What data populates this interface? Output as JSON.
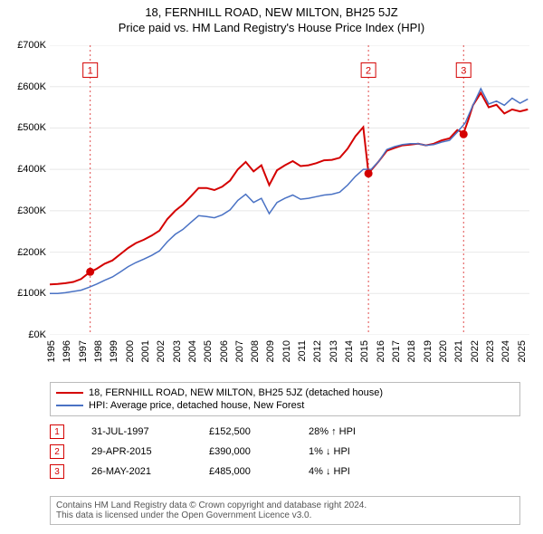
{
  "title": "18, FERNHILL ROAD, NEW MILTON, BH25 5JZ",
  "subtitle": "Price paid vs. HM Land Registry's House Price Index (HPI)",
  "chart": {
    "background_color": "#ffffff",
    "grid_color": "#e8e8e8",
    "axis_color": "#e0e0e0",
    "label_fontsize": 11,
    "x_min": 1995,
    "x_max": 2025.6,
    "xtick_step": 1,
    "ylim": [
      0,
      700000
    ],
    "ytick_step": 100000,
    "y_prefix": "£",
    "y_suffix": "K",
    "series": [
      {
        "name": "18, FERNHILL ROAD, NEW MILTON, BH25 5JZ (detached house)",
        "color": "#d40000",
        "width": 2,
        "points": [
          [
            1995.0,
            122000
          ],
          [
            1995.5,
            123000
          ],
          [
            1996.0,
            125000
          ],
          [
            1996.5,
            128000
          ],
          [
            1997.0,
            135000
          ],
          [
            1997.5,
            150000
          ],
          [
            1998.0,
            160000
          ],
          [
            1998.5,
            172000
          ],
          [
            1999.0,
            180000
          ],
          [
            1999.5,
            195000
          ],
          [
            2000.0,
            210000
          ],
          [
            2000.5,
            222000
          ],
          [
            2001.0,
            230000
          ],
          [
            2001.5,
            240000
          ],
          [
            2002.0,
            252000
          ],
          [
            2002.5,
            280000
          ],
          [
            2003.0,
            300000
          ],
          [
            2003.5,
            315000
          ],
          [
            2004.0,
            335000
          ],
          [
            2004.5,
            355000
          ],
          [
            2005.0,
            355000
          ],
          [
            2005.5,
            350000
          ],
          [
            2006.0,
            358000
          ],
          [
            2006.5,
            373000
          ],
          [
            2007.0,
            400000
          ],
          [
            2007.5,
            418000
          ],
          [
            2008.0,
            395000
          ],
          [
            2008.5,
            410000
          ],
          [
            2009.0,
            362000
          ],
          [
            2009.5,
            398000
          ],
          [
            2010.0,
            410000
          ],
          [
            2010.5,
            420000
          ],
          [
            2011.0,
            408000
          ],
          [
            2011.5,
            410000
          ],
          [
            2012.0,
            415000
          ],
          [
            2012.5,
            422000
          ],
          [
            2013.0,
            423000
          ],
          [
            2013.5,
            428000
          ],
          [
            2014.0,
            450000
          ],
          [
            2014.5,
            480000
          ],
          [
            2015.0,
            502000
          ],
          [
            2015.33,
            392000
          ],
          [
            2015.5,
            398000
          ],
          [
            2016.0,
            420000
          ],
          [
            2016.5,
            445000
          ],
          [
            2017.0,
            452000
          ],
          [
            2017.5,
            458000
          ],
          [
            2018.0,
            460000
          ],
          [
            2018.5,
            462000
          ],
          [
            2019.0,
            458000
          ],
          [
            2019.5,
            462000
          ],
          [
            2020.0,
            470000
          ],
          [
            2020.5,
            475000
          ],
          [
            2021.0,
            495000
          ],
          [
            2021.4,
            488000
          ],
          [
            2021.7,
            520000
          ],
          [
            2022.0,
            555000
          ],
          [
            2022.5,
            585000
          ],
          [
            2023.0,
            550000
          ],
          [
            2023.5,
            556000
          ],
          [
            2024.0,
            535000
          ],
          [
            2024.5,
            545000
          ],
          [
            2025.0,
            540000
          ],
          [
            2025.5,
            545000
          ]
        ]
      },
      {
        "name": "HPI: Average price, detached house, New Forest",
        "color": "#4a72c4",
        "width": 1.5,
        "points": [
          [
            1995.0,
            100000
          ],
          [
            1995.5,
            100000
          ],
          [
            1996.0,
            102000
          ],
          [
            1996.5,
            105000
          ],
          [
            1997.0,
            108000
          ],
          [
            1997.5,
            115000
          ],
          [
            1998.0,
            123000
          ],
          [
            1998.5,
            132000
          ],
          [
            1999.0,
            140000
          ],
          [
            1999.5,
            152000
          ],
          [
            2000.0,
            165000
          ],
          [
            2000.5,
            175000
          ],
          [
            2001.0,
            183000
          ],
          [
            2001.5,
            192000
          ],
          [
            2002.0,
            203000
          ],
          [
            2002.5,
            225000
          ],
          [
            2003.0,
            243000
          ],
          [
            2003.5,
            255000
          ],
          [
            2004.0,
            272000
          ],
          [
            2004.5,
            288000
          ],
          [
            2005.0,
            286000
          ],
          [
            2005.5,
            283000
          ],
          [
            2006.0,
            290000
          ],
          [
            2006.5,
            302000
          ],
          [
            2007.0,
            325000
          ],
          [
            2007.5,
            340000
          ],
          [
            2008.0,
            320000
          ],
          [
            2008.5,
            330000
          ],
          [
            2009.0,
            293000
          ],
          [
            2009.5,
            320000
          ],
          [
            2010.0,
            330000
          ],
          [
            2010.5,
            338000
          ],
          [
            2011.0,
            328000
          ],
          [
            2011.5,
            330000
          ],
          [
            2012.0,
            334000
          ],
          [
            2012.5,
            338000
          ],
          [
            2013.0,
            340000
          ],
          [
            2013.5,
            345000
          ],
          [
            2014.0,
            362000
          ],
          [
            2014.5,
            383000
          ],
          [
            2015.0,
            400000
          ],
          [
            2015.5,
            400000
          ],
          [
            2016.0,
            420000
          ],
          [
            2016.5,
            448000
          ],
          [
            2017.0,
            455000
          ],
          [
            2017.5,
            460000
          ],
          [
            2018.0,
            462000
          ],
          [
            2018.5,
            462000
          ],
          [
            2019.0,
            458000
          ],
          [
            2019.5,
            460000
          ],
          [
            2020.0,
            466000
          ],
          [
            2020.5,
            470000
          ],
          [
            2021.0,
            490000
          ],
          [
            2021.5,
            512000
          ],
          [
            2022.0,
            555000
          ],
          [
            2022.5,
            595000
          ],
          [
            2023.0,
            558000
          ],
          [
            2023.5,
            565000
          ],
          [
            2024.0,
            555000
          ],
          [
            2024.5,
            572000
          ],
          [
            2025.0,
            560000
          ],
          [
            2025.5,
            570000
          ]
        ]
      }
    ],
    "markers": [
      {
        "num": "1",
        "x": 1997.58,
        "y": 152500,
        "color": "#d40000",
        "label_y": 640000
      },
      {
        "num": "2",
        "x": 2015.33,
        "y": 390000,
        "color": "#d40000",
        "label_y": 640000
      },
      {
        "num": "3",
        "x": 2021.4,
        "y": 485000,
        "color": "#d40000",
        "label_y": 640000
      }
    ]
  },
  "legend": [
    {
      "color": "#d40000",
      "label": "18, FERNHILL ROAD, NEW MILTON, BH25 5JZ (detached house)"
    },
    {
      "color": "#4a72c4",
      "label": "HPI: Average price, detached house, New Forest"
    }
  ],
  "events": [
    {
      "num": "1",
      "date": "31-JUL-1997",
      "price": "£152,500",
      "pct": "28% ↑ HPI",
      "color": "#d40000"
    },
    {
      "num": "2",
      "date": "29-APR-2015",
      "price": "£390,000",
      "pct": "1% ↓ HPI",
      "color": "#d40000"
    },
    {
      "num": "3",
      "date": "26-MAY-2021",
      "price": "£485,000",
      "pct": "4% ↓ HPI",
      "color": "#d40000"
    }
  ],
  "footnote_line1": "Contains HM Land Registry data © Crown copyright and database right 2024.",
  "footnote_line2": "This data is licensed under the Open Government Licence v3.0."
}
